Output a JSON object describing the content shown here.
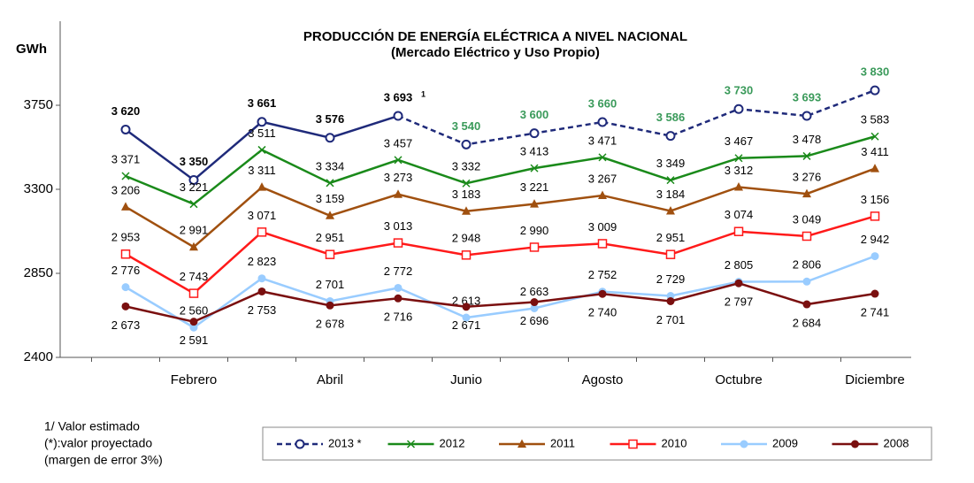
{
  "chart_data": {
    "type": "line",
    "title": "PRODUCCIÓN DE ENERGÍA ELÉCTRICA  A NIVEL NACIONAL",
    "subtitle": "(Mercado Eléctrico y  Uso Propio)",
    "y_label": "GWh",
    "categories": [
      null,
      "Febrero",
      null,
      "Abril",
      null,
      "Junio",
      null,
      "Agosto",
      null,
      "Octubre",
      null,
      "Diciembre"
    ],
    "ylim": [
      2400,
      4200
    ],
    "yticks": [
      2400,
      2850,
      3300,
      3750
    ],
    "series": [
      {
        "name": "2013 *",
        "color": "#1f2a7a",
        "marker": "circle-open",
        "projected_start": 4,
        "note_index": 4,
        "note_marker": "1",
        "values": [
          3620,
          3350,
          3661,
          3576,
          3693,
          3540,
          3600,
          3660,
          3586,
          3730,
          3693,
          3830
        ],
        "value_labels": [
          "3 620",
          "3 350",
          "3 661",
          "3 576",
          "3 693",
          "3 540",
          "3 600",
          "3 660",
          "3 586",
          "3 730",
          "3 693",
          "3 830"
        ]
      },
      {
        "name": "2012",
        "color": "#1a8a1a",
        "marker": "x",
        "values": [
          3371,
          3221,
          3511,
          3334,
          3457,
          3332,
          3413,
          3471,
          3349,
          3467,
          3478,
          3583
        ],
        "value_labels": [
          "3 371",
          "3 221",
          "3 511",
          "3 334",
          "3 457",
          "3 332",
          "3 413",
          "3 471",
          "3 349",
          "3 467",
          "3 478",
          "3 583"
        ]
      },
      {
        "name": "2011",
        "color": "#a0500f",
        "marker": "triangle",
        "values": [
          3206,
          2991,
          3311,
          3159,
          3273,
          3183,
          3221,
          3267,
          3184,
          3312,
          3276,
          3411
        ],
        "value_labels": [
          "3 206",
          "2 991",
          "3 311",
          "3 159",
          "3 273",
          "3 183",
          "3 221",
          "3 267",
          "3 184",
          "3 312",
          "3 276",
          "3 411"
        ]
      },
      {
        "name": "2010",
        "color": "#ff1a1a",
        "marker": "square-open",
        "values": [
          2953,
          2743,
          3071,
          2951,
          3013,
          2948,
          2990,
          3009,
          2951,
          3074,
          3049,
          3156
        ],
        "value_labels": [
          "2 953",
          "2 743",
          "3 071",
          "2 951",
          "3 013",
          "2 948",
          "2 990",
          "3 009",
          "2 951",
          "3 074",
          "3 049",
          "3 156"
        ]
      },
      {
        "name": "2009",
        "color": "#99ccff",
        "marker": "circle",
        "values": [
          2776,
          2560,
          2823,
          2701,
          2772,
          2613,
          2663,
          2752,
          2729,
          2805,
          2806,
          2942
        ],
        "value_labels": [
          "2 776",
          "2 560",
          "2 823",
          "2 701",
          "2 772",
          "2 613",
          "2 663",
          "2 752",
          "2 729",
          "2 805",
          "2 806",
          "2 942"
        ]
      },
      {
        "name": "2008",
        "color": "#7a0f0f",
        "marker": "circle",
        "values": [
          2673,
          2591,
          2753,
          2678,
          2716,
          2671,
          2696,
          2740,
          2701,
          2797,
          2684,
          2741
        ],
        "value_labels": [
          "2 673",
          "2 591",
          "2 753",
          "2 678",
          "2 716",
          "2 671",
          "2 696",
          "2 740",
          "2 701",
          "2 797",
          "2 684",
          "2 741"
        ]
      }
    ],
    "notes": [
      "1/  Valor estimado",
      "(*):valor proyectado",
      "(margen de error 3%)"
    ]
  }
}
